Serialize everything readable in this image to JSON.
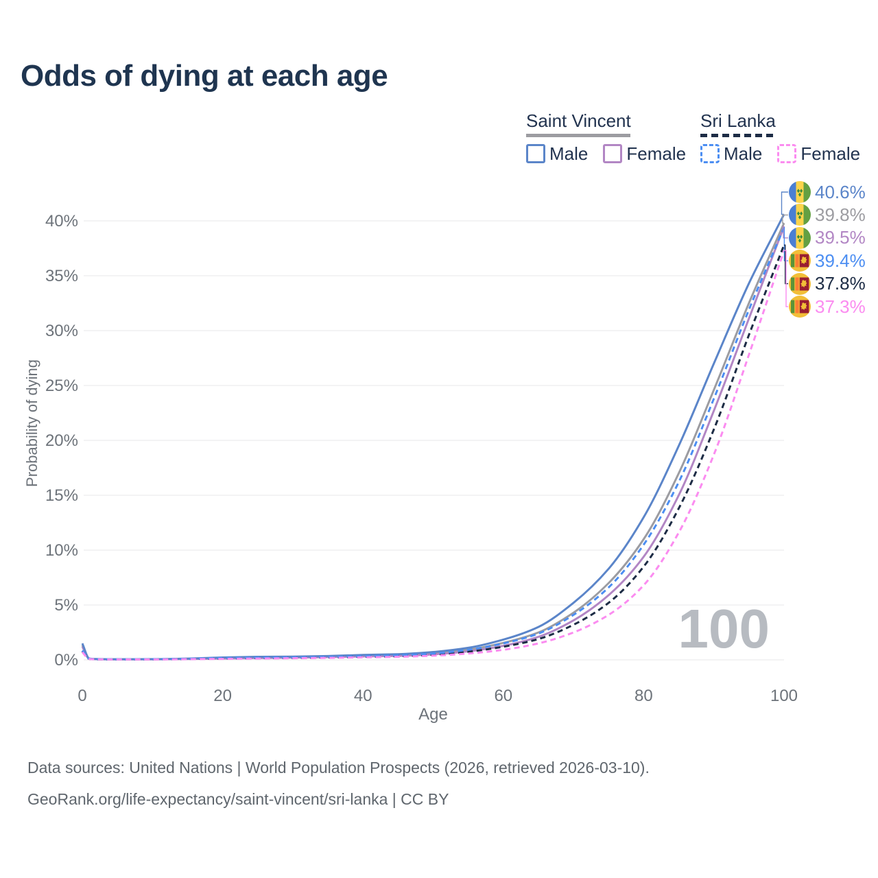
{
  "title": "Odds of dying at each age",
  "watermark": "100",
  "colors": {
    "title_text": "#1f3550",
    "axis_text": "#6d737a",
    "gridline": "#ececee",
    "watermark": "#b7bbc1",
    "footer_text": "#5f666d"
  },
  "legend": {
    "groups": [
      {
        "name": "Saint Vincent",
        "line_color": "#9c9ca1",
        "line_style": "solid",
        "items": [
          {
            "label": "Male",
            "color": "#5b85c9",
            "style": "solid"
          },
          {
            "label": "Female",
            "color": "#b286c4",
            "style": "solid"
          }
        ]
      },
      {
        "name": "Sri Lanka",
        "line_color": "#1d2c45",
        "line_style": "dashed",
        "items": [
          {
            "label": "Male",
            "color": "#4c8ef2",
            "style": "dashed"
          },
          {
            "label": "Female",
            "color": "#fb8cf0",
            "style": "dashed"
          }
        ]
      }
    ]
  },
  "chart_data": {
    "type": "line",
    "title": "Odds of dying at each age",
    "xlabel": "Age",
    "ylabel": "Probability of dying",
    "xlim": [
      0,
      100
    ],
    "ylim_percent": [
      0,
      42
    ],
    "grid": "horizontal-only",
    "legend_position": "top-right",
    "x_ticks": [
      0,
      20,
      40,
      60,
      80,
      100
    ],
    "y_ticks_percent": [
      0,
      5,
      10,
      15,
      20,
      25,
      30,
      35,
      40
    ],
    "ages": [
      0,
      1,
      2,
      5,
      10,
      15,
      20,
      25,
      30,
      35,
      40,
      45,
      50,
      55,
      60,
      65,
      70,
      75,
      80,
      85,
      90,
      95,
      100
    ],
    "series": [
      {
        "name": "Saint Vincent — Male",
        "country": "Saint Vincent",
        "sex": "Male",
        "flag": "saint-vincent",
        "style": "solid",
        "color": "#5b85c9",
        "end_label": "40.6%",
        "values_percent": [
          1.5,
          0.12,
          0.08,
          0.06,
          0.07,
          0.12,
          0.22,
          0.28,
          0.3,
          0.35,
          0.45,
          0.52,
          0.72,
          1.1,
          1.85,
          3.0,
          5.2,
          8.3,
          13.0,
          19.5,
          27.0,
          34.3,
          40.6
        ]
      },
      {
        "name": "Saint Vincent — Both sexes",
        "country": "Saint Vincent",
        "sex": "All",
        "flag": "saint-vincent",
        "style": "solid",
        "color": "#9c9ca1",
        "end_label": "39.8%",
        "values_percent": [
          1.35,
          0.11,
          0.07,
          0.05,
          0.06,
          0.1,
          0.17,
          0.22,
          0.25,
          0.3,
          0.38,
          0.44,
          0.6,
          0.92,
          1.55,
          2.5,
          4.3,
          7.0,
          11.0,
          17.0,
          24.6,
          32.5,
          39.8
        ]
      },
      {
        "name": "Saint Vincent — Female",
        "country": "Saint Vincent",
        "sex": "Female",
        "flag": "saint-vincent",
        "style": "solid",
        "color": "#b286c4",
        "end_label": "39.5%",
        "values_percent": [
          1.2,
          0.1,
          0.06,
          0.05,
          0.05,
          0.08,
          0.12,
          0.16,
          0.2,
          0.25,
          0.31,
          0.36,
          0.5,
          0.78,
          1.28,
          2.1,
          3.6,
          5.9,
          9.4,
          15.0,
          22.7,
          31.1,
          39.5
        ]
      },
      {
        "name": "Sri Lanka — Male",
        "country": "Sri Lanka",
        "sex": "Male",
        "flag": "sri-lanka",
        "style": "dashed",
        "color": "#4c8ef2",
        "end_label": "39.4%",
        "values_percent": [
          0.85,
          0.1,
          0.06,
          0.05,
          0.06,
          0.1,
          0.17,
          0.2,
          0.22,
          0.27,
          0.34,
          0.42,
          0.58,
          0.92,
          1.5,
          2.4,
          4.1,
          6.6,
          10.5,
          16.2,
          23.8,
          31.9,
          39.4
        ]
      },
      {
        "name": "Sri Lanka — Both sexes",
        "country": "Sri Lanka",
        "sex": "All",
        "flag": "sri-lanka",
        "style": "dashed",
        "color": "#1d2c45",
        "end_label": "37.8%",
        "values_percent": [
          0.8,
          0.09,
          0.05,
          0.04,
          0.05,
          0.08,
          0.13,
          0.16,
          0.18,
          0.22,
          0.28,
          0.34,
          0.47,
          0.74,
          1.2,
          1.9,
          3.2,
          5.2,
          8.5,
          13.8,
          21.0,
          29.6,
          37.8
        ]
      },
      {
        "name": "Sri Lanka — Female",
        "country": "Sri Lanka",
        "sex": "Female",
        "flag": "sri-lanka",
        "style": "dashed",
        "color": "#fb8cf0",
        "end_label": "37.3%",
        "values_percent": [
          0.7,
          0.08,
          0.05,
          0.04,
          0.04,
          0.06,
          0.09,
          0.12,
          0.15,
          0.18,
          0.23,
          0.28,
          0.38,
          0.58,
          0.92,
          1.5,
          2.5,
          4.1,
          6.8,
          11.6,
          18.7,
          27.8,
          37.3
        ]
      }
    ],
    "end_labels_right": [
      "40.6%",
      "39.8%",
      "39.5%",
      "39.4%",
      "37.8%",
      "37.3%"
    ]
  },
  "footer": {
    "line1": "Data sources: United Nations | World Population Prospects (2026, retrieved 2026-03-10).",
    "line2": "GeoRank.org/life-expectancy/saint-vincent/sri-lanka | CC BY"
  }
}
